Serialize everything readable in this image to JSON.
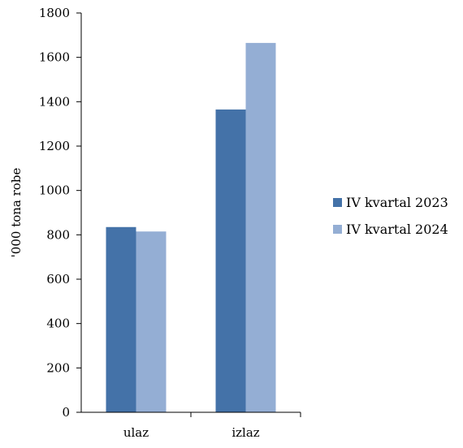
{
  "chart_data": {
    "type": "bar",
    "title": "",
    "xlabel": "",
    "ylabel": "'000 tona robe",
    "ylim": [
      0,
      1800
    ],
    "yticks": [
      0,
      200,
      400,
      600,
      800,
      1000,
      1200,
      1400,
      1600,
      1800
    ],
    "categories": [
      "ulaz",
      "izlaz"
    ],
    "series": [
      {
        "name": "IV kvartal 2023",
        "color": "#4472a8",
        "values": [
          835,
          1365
        ]
      },
      {
        "name": "IV kvartal 2024",
        "color": "#94aed4",
        "values": [
          815,
          1665
        ]
      }
    ],
    "grid": false,
    "legend_position": "right"
  }
}
